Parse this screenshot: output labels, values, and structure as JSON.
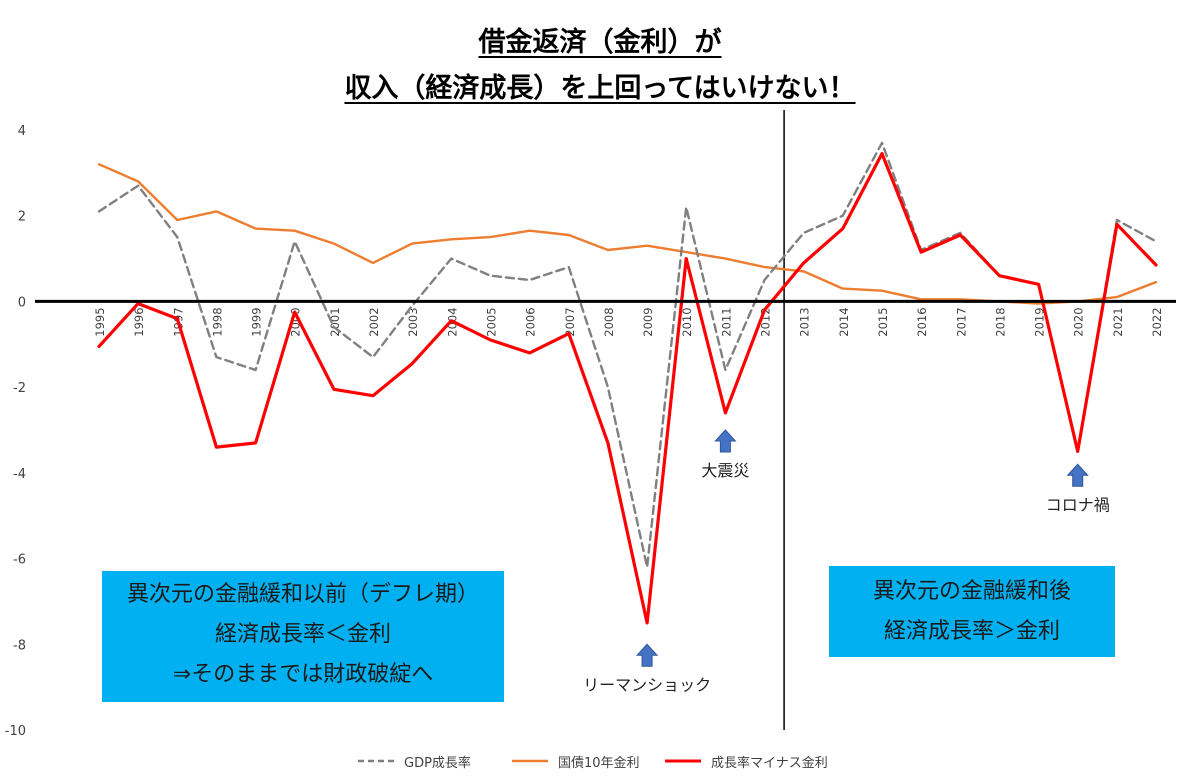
{
  "title": {
    "line1": "借金返済（金利）が",
    "line2": "収入（経済成長）を上回ってはいけない！"
  },
  "chart_data": {
    "type": "line",
    "categories": [
      "1995",
      "1996",
      "1997",
      "1998",
      "1999",
      "2000",
      "2001",
      "2002",
      "2003",
      "2004",
      "2005",
      "2006",
      "2007",
      "2008",
      "2009",
      "2010",
      "2011",
      "2012",
      "2013",
      "2014",
      "2015",
      "2016",
      "2017",
      "2018",
      "2019",
      "2020",
      "2021",
      "2022"
    ],
    "ylim": [
      -10,
      4
    ],
    "yticks": [
      4,
      2,
      0,
      -2,
      -4,
      -6,
      -8,
      -10
    ],
    "grid": false,
    "series": [
      {
        "name": "GDP成長率",
        "color": "#808080",
        "dash": true,
        "values": [
          2.1,
          2.7,
          1.5,
          -1.3,
          -1.6,
          1.4,
          -0.6,
          -1.3,
          -0.1,
          1.0,
          0.6,
          0.5,
          0.8,
          -2.0,
          -6.2,
          2.2,
          -1.6,
          0.5,
          1.6,
          2.0,
          3.7,
          1.2,
          1.6,
          0.6,
          0.4,
          -3.5,
          1.9,
          1.4
        ]
      },
      {
        "name": "国債10年金利",
        "color": "#ed7d31",
        "dash": false,
        "values": [
          3.2,
          2.8,
          1.9,
          2.1,
          1.7,
          1.65,
          1.35,
          0.9,
          1.35,
          1.45,
          1.5,
          1.65,
          1.55,
          1.2,
          1.3,
          1.15,
          1.0,
          0.8,
          0.7,
          0.3,
          0.25,
          0.05,
          0.05,
          0.0,
          -0.05,
          0.0,
          0.1,
          0.45
        ]
      },
      {
        "name": "成長率マイナス金利",
        "color": "#ff0000",
        "dash": false,
        "values": [
          -1.05,
          -0.05,
          -0.4,
          -3.4,
          -3.3,
          -0.25,
          -2.05,
          -2.2,
          -1.45,
          -0.45,
          -0.9,
          -1.2,
          -0.75,
          -3.3,
          -7.5,
          1.0,
          -2.6,
          -0.2,
          0.9,
          1.7,
          3.45,
          1.15,
          1.55,
          0.6,
          0.4,
          -3.5,
          1.8,
          0.85
        ]
      }
    ],
    "divider_after": "2012",
    "annotations": [
      {
        "text": "リーマンショック",
        "category": "2009",
        "y_value": -8.0
      },
      {
        "text": "大震災",
        "category": "2011",
        "y_value": -3.0
      },
      {
        "text": "コロナ禍",
        "category": "2020",
        "y_value": -3.8
      }
    ]
  },
  "callouts": {
    "left": {
      "line1": "異次元の金融緩和以前（デフレ期）",
      "line2": "経済成長率＜金利",
      "line3": "⇒そのままでは財政破綻へ"
    },
    "right": {
      "line1": "異次元の金融緩和後",
      "line2": "経済成長率＞金利"
    }
  },
  "colors": {
    "callout_bg": "#00b0f0",
    "arrow": "#4472c4",
    "axis_zero": "#000000"
  },
  "icons": {
    "annotation_arrow": "up-arrow-icon"
  }
}
